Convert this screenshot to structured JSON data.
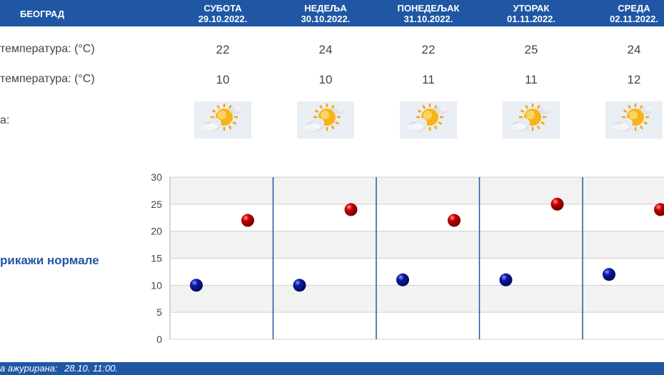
{
  "header": {
    "city": "БЕОГРАД",
    "days": [
      {
        "name": "СУБОТА",
        "date": "29.10.2022."
      },
      {
        "name": "НЕДЕЉА",
        "date": "30.10.2022."
      },
      {
        "name": "ПОНЕДЕЉАК",
        "date": "31.10.2022."
      },
      {
        "name": "УТОРАК",
        "date": "01.11.2022."
      },
      {
        "name": "СРЕДА",
        "date": "02.11.2022."
      }
    ]
  },
  "rows": {
    "max_label": "температура: (°C)",
    "min_label": "температура: (°C)",
    "icon_label": "а:"
  },
  "icons": [
    "partly-cloudy-sun-icon",
    "partly-cloudy-sun-icon",
    "partly-cloudy-sun-icon",
    "partly-cloudy-sun-icon",
    "partly-cloudy-sun-icon"
  ],
  "toggle_label": "рикажи нормале",
  "footer": {
    "label": "а ажурирана:",
    "value": "28.10. 11:00."
  },
  "colors": {
    "header": "#1f57a4",
    "max_point": "#cc0000",
    "min_point": "#0a1aa8",
    "divider": "#1f57a4"
  },
  "chart_data": {
    "type": "scatter",
    "categories": [
      "СУБОТА",
      "НЕДЕЉА",
      "ПОНЕДЕЉАК",
      "УТОРАК",
      "СРЕДА"
    ],
    "series": [
      {
        "values": [
          22,
          24,
          22,
          25,
          24
        ]
      },
      {
        "values": [
          10,
          10,
          11,
          11,
          12
        ]
      }
    ],
    "yticks": [
      "0",
      "5",
      "10",
      "15",
      "20",
      "25",
      "30"
    ],
    "ylim": [
      0,
      30
    ],
    "grid": true
  }
}
